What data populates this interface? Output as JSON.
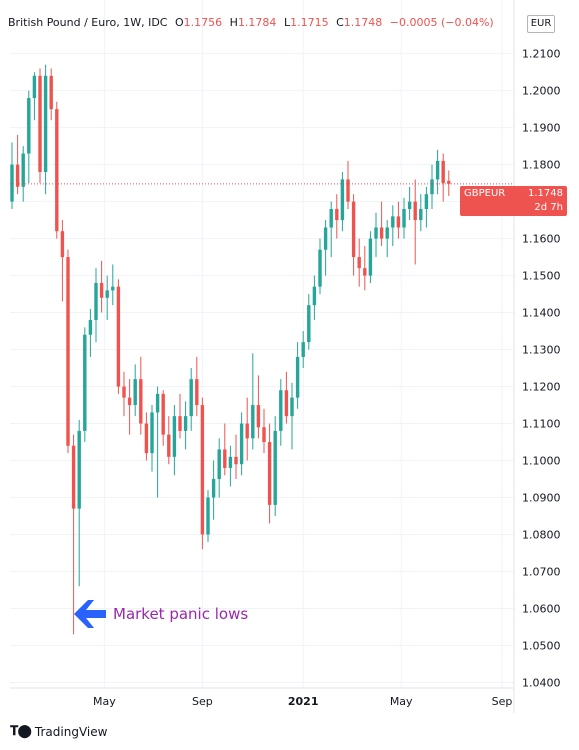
{
  "header": {
    "instrument": "British Pound / Euro, 1W, IDC",
    "open_label": "O",
    "open_value": "1.1756",
    "high_label": "H",
    "high_value": "1.1784",
    "low_label": "L",
    "low_value": "1.1715",
    "close_label": "C",
    "close_value": "1.1748",
    "change": "−0.0005 (−0.04%)"
  },
  "currency": "EUR",
  "price_tag": {
    "symbol": "GBPEUR",
    "value": "1.1748",
    "countdown": "2d 7h"
  },
  "annotation": {
    "text": "Market panic lows",
    "icon": "arrow-left-icon"
  },
  "brand": {
    "text": "TradingView",
    "icon": "tradingview-logo-icon"
  },
  "colors": {
    "up": "#26a69a",
    "down": "#ef5350",
    "annotation": "#9c27b0",
    "arrow": "#2962ff",
    "grid": "#f0f3fa"
  },
  "chart_data": {
    "type": "candlestick",
    "ylim": [
      1.0385,
      1.2245
    ],
    "y_ticks": [
      "1.0400",
      "1.0500",
      "1.0600",
      "1.0700",
      "1.0800",
      "1.0900",
      "1.1000",
      "1.1100",
      "1.1200",
      "1.1300",
      "1.1400",
      "1.1500",
      "1.1600",
      "1.1700",
      "1.1800",
      "1.1900",
      "1.2000",
      "1.2100"
    ],
    "x_ticks": [
      {
        "label": "May",
        "index": 16.5
      },
      {
        "label": "Sep",
        "index": 34
      },
      {
        "label": "2021",
        "index": 52
      },
      {
        "label": "May",
        "index": 69.5
      },
      {
        "label": "Sep",
        "index": 87.5
      }
    ],
    "last_price": 1.1748,
    "grid": true,
    "candles": [
      [
        1.17,
        1.186,
        1.168,
        1.18
      ],
      [
        1.18,
        1.188,
        1.172,
        1.174
      ],
      [
        1.174,
        1.185,
        1.17,
        1.183
      ],
      [
        1.183,
        1.2,
        1.175,
        1.198
      ],
      [
        1.198,
        1.205,
        1.192,
        1.204
      ],
      [
        1.204,
        1.206,
        1.175,
        1.178
      ],
      [
        1.178,
        1.207,
        1.172,
        1.204
      ],
      [
        1.204,
        1.206,
        1.192,
        1.195
      ],
      [
        1.195,
        1.197,
        1.16,
        1.162
      ],
      [
        1.162,
        1.165,
        1.143,
        1.155
      ],
      [
        1.155,
        1.157,
        1.102,
        1.104
      ],
      [
        1.104,
        1.107,
        1.053,
        1.087
      ],
      [
        1.087,
        1.111,
        1.066,
        1.108
      ],
      [
        1.108,
        1.136,
        1.105,
        1.134
      ],
      [
        1.134,
        1.141,
        1.128,
        1.138
      ],
      [
        1.138,
        1.152,
        1.132,
        1.148
      ],
      [
        1.148,
        1.154,
        1.14,
        1.144
      ],
      [
        1.144,
        1.15,
        1.138,
        1.146
      ],
      [
        1.146,
        1.153,
        1.142,
        1.147
      ],
      [
        1.147,
        1.149,
        1.118,
        1.12
      ],
      [
        1.12,
        1.124,
        1.112,
        1.117
      ],
      [
        1.117,
        1.122,
        1.107,
        1.115
      ],
      [
        1.115,
        1.126,
        1.112,
        1.122
      ],
      [
        1.122,
        1.128,
        1.107,
        1.11
      ],
      [
        1.11,
        1.113,
        1.1,
        1.102
      ],
      [
        1.102,
        1.115,
        1.097,
        1.113
      ],
      [
        1.113,
        1.12,
        1.09,
        1.118
      ],
      [
        1.118,
        1.119,
        1.104,
        1.107
      ],
      [
        1.107,
        1.112,
        1.099,
        1.101
      ],
      [
        1.101,
        1.115,
        1.096,
        1.112
      ],
      [
        1.112,
        1.118,
        1.106,
        1.108
      ],
      [
        1.108,
        1.116,
        1.103,
        1.112
      ],
      [
        1.112,
        1.125,
        1.108,
        1.122
      ],
      [
        1.122,
        1.128,
        1.112,
        1.115
      ],
      [
        1.115,
        1.117,
        1.076,
        1.08
      ],
      [
        1.08,
        1.092,
        1.078,
        1.09
      ],
      [
        1.09,
        1.1,
        1.084,
        1.095
      ],
      [
        1.095,
        1.106,
        1.09,
        1.103
      ],
      [
        1.103,
        1.11,
        1.096,
        1.098
      ],
      [
        1.098,
        1.104,
        1.093,
        1.101
      ],
      [
        1.101,
        1.107,
        1.095,
        1.099
      ],
      [
        1.099,
        1.113,
        1.096,
        1.11
      ],
      [
        1.11,
        1.117,
        1.1,
        1.106
      ],
      [
        1.106,
        1.129,
        1.103,
        1.115
      ],
      [
        1.115,
        1.123,
        1.106,
        1.109
      ],
      [
        1.109,
        1.114,
        1.102,
        1.105
      ],
      [
        1.105,
        1.11,
        1.083,
        1.088
      ],
      [
        1.088,
        1.112,
        1.085,
        1.108
      ],
      [
        1.108,
        1.122,
        1.104,
        1.119
      ],
      [
        1.119,
        1.124,
        1.11,
        1.112
      ],
      [
        1.112,
        1.121,
        1.103,
        1.117
      ],
      [
        1.117,
        1.132,
        1.114,
        1.128
      ],
      [
        1.128,
        1.135,
        1.125,
        1.132
      ],
      [
        1.132,
        1.145,
        1.13,
        1.142
      ],
      [
        1.142,
        1.15,
        1.138,
        1.147
      ],
      [
        1.147,
        1.16,
        1.145,
        1.157
      ],
      [
        1.157,
        1.165,
        1.15,
        1.163
      ],
      [
        1.163,
        1.17,
        1.155,
        1.168
      ],
      [
        1.168,
        1.172,
        1.16,
        1.165
      ],
      [
        1.165,
        1.178,
        1.162,
        1.176
      ],
      [
        1.176,
        1.181,
        1.168,
        1.17
      ],
      [
        1.17,
        1.172,
        1.15,
        1.155
      ],
      [
        1.155,
        1.16,
        1.147,
        1.152
      ],
      [
        1.152,
        1.158,
        1.146,
        1.15
      ],
      [
        1.15,
        1.162,
        1.148,
        1.16
      ],
      [
        1.16,
        1.167,
        1.155,
        1.163
      ],
      [
        1.163,
        1.17,
        1.158,
        1.16
      ],
      [
        1.16,
        1.165,
        1.155,
        1.163
      ],
      [
        1.163,
        1.169,
        1.158,
        1.166
      ],
      [
        1.166,
        1.17,
        1.16,
        1.163
      ],
      [
        1.163,
        1.171,
        1.16,
        1.168
      ],
      [
        1.168,
        1.174,
        1.165,
        1.17
      ],
      [
        1.17,
        1.176,
        1.153,
        1.165
      ],
      [
        1.165,
        1.172,
        1.162,
        1.168
      ],
      [
        1.168,
        1.174,
        1.163,
        1.172
      ],
      [
        1.172,
        1.18,
        1.168,
        1.176
      ],
      [
        1.176,
        1.184,
        1.172,
        1.181
      ],
      [
        1.181,
        1.183,
        1.17,
        1.175
      ],
      [
        1.1756,
        1.1784,
        1.1715,
        1.1748
      ]
    ]
  }
}
